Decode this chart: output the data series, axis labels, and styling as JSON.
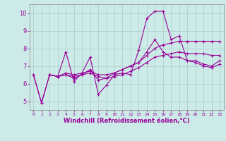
{
  "xlabel": "Windchill (Refroidissement éolien,°C)",
  "background_color": "#cceae7",
  "line_color": "#990099",
  "xlim": [
    -0.5,
    23.5
  ],
  "ylim": [
    4.5,
    10.5
  ],
  "yticks": [
    5,
    6,
    7,
    8,
    9,
    10
  ],
  "xticks": [
    0,
    1,
    2,
    3,
    4,
    5,
    6,
    7,
    8,
    9,
    10,
    11,
    12,
    13,
    14,
    15,
    16,
    17,
    18,
    19,
    20,
    21,
    22,
    23
  ],
  "series1_x": [
    0,
    1,
    2,
    3,
    4,
    5,
    6,
    7,
    8,
    9,
    10,
    11,
    12,
    13,
    14,
    15,
    16,
    17,
    18,
    19,
    20,
    21,
    22,
    23
  ],
  "series1_y": [
    6.5,
    4.9,
    6.5,
    6.4,
    7.8,
    6.1,
    6.6,
    7.5,
    5.4,
    5.9,
    6.5,
    6.6,
    6.5,
    7.9,
    9.7,
    10.1,
    10.1,
    8.5,
    8.7,
    7.3,
    7.3,
    7.1,
    7.0,
    7.3
  ],
  "series2_x": [
    2,
    3,
    4,
    5,
    6,
    7,
    8,
    9,
    10,
    11,
    12,
    13,
    14,
    15,
    16,
    17,
    18,
    19,
    20,
    21,
    22,
    23
  ],
  "series2_y": [
    6.5,
    6.4,
    6.6,
    6.5,
    6.6,
    6.7,
    6.5,
    6.5,
    6.6,
    6.8,
    7.0,
    7.2,
    7.6,
    8.0,
    8.2,
    8.3,
    8.4,
    8.4,
    8.4,
    8.4,
    8.4,
    8.4
  ],
  "series3_x": [
    2,
    3,
    4,
    5,
    6,
    7,
    8,
    9,
    10,
    11,
    12,
    13,
    14,
    15,
    16,
    17,
    18,
    19,
    20,
    21,
    22,
    23
  ],
  "series3_y": [
    6.5,
    6.4,
    6.5,
    6.4,
    6.5,
    6.6,
    6.4,
    6.3,
    6.4,
    6.5,
    6.7,
    6.9,
    7.2,
    7.5,
    7.6,
    7.7,
    7.8,
    7.7,
    7.7,
    7.7,
    7.6,
    7.6
  ],
  "series4_x": [
    0,
    1,
    2,
    3,
    4,
    5,
    6,
    7,
    8,
    9,
    10,
    11,
    12,
    13,
    14,
    15,
    16,
    17,
    18,
    19,
    20,
    21,
    22,
    23
  ],
  "series4_y": [
    6.5,
    4.9,
    6.5,
    6.4,
    6.5,
    6.3,
    6.5,
    6.8,
    6.2,
    6.3,
    6.6,
    6.8,
    7.0,
    7.2,
    7.8,
    8.5,
    7.8,
    7.5,
    7.5,
    7.3,
    7.2,
    7.0,
    6.9,
    7.1
  ]
}
